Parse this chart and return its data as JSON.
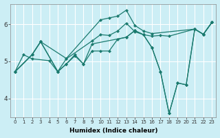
{
  "xlabel": "Humidex (Indice chaleur)",
  "background_color": "#cceef5",
  "grid_color": "#ffffff",
  "line_color": "#1a7a6e",
  "xlim": [
    -0.5,
    23.5
  ],
  "ylim": [
    3.5,
    6.55
  ],
  "yticks": [
    4,
    5,
    6
  ],
  "xticks": [
    0,
    1,
    2,
    3,
    4,
    5,
    6,
    7,
    8,
    9,
    10,
    11,
    12,
    13,
    14,
    15,
    16,
    17,
    18,
    19,
    20,
    21,
    22,
    23
  ],
  "series": [
    {
      "x": [
        0,
        2,
        3,
        6,
        10,
        11,
        12,
        13,
        14,
        15,
        16,
        21,
        22,
        23
      ],
      "y": [
        4.72,
        5.18,
        5.53,
        5.08,
        6.12,
        6.17,
        6.22,
        6.38,
        5.97,
        5.82,
        5.75,
        5.87,
        5.73,
        6.05
      ]
    },
    {
      "x": [
        0,
        2,
        3,
        5,
        6,
        9,
        10,
        11,
        12,
        13,
        14,
        15,
        16,
        17,
        18,
        21,
        22,
        23
      ],
      "y": [
        4.72,
        5.18,
        5.53,
        4.73,
        5.07,
        5.55,
        5.72,
        5.7,
        5.82,
        6.03,
        5.8,
        5.72,
        5.68,
        5.7,
        5.68,
        5.87,
        5.73,
        6.05
      ]
    },
    {
      "x": [
        0,
        2,
        3,
        5,
        6,
        7,
        8,
        9,
        13,
        14,
        15,
        16,
        17,
        18,
        19,
        20,
        21,
        22,
        23
      ],
      "y": [
        4.72,
        5.18,
        5.53,
        4.73,
        4.93,
        5.18,
        4.93,
        5.47,
        5.65,
        5.83,
        5.72,
        5.37,
        4.72,
        3.6,
        4.42,
        4.37,
        5.87,
        5.73,
        6.05
      ]
    },
    {
      "x": [
        0,
        1,
        2,
        4,
        5,
        6,
        7,
        8,
        9,
        10,
        11,
        12,
        13,
        14,
        15,
        16,
        17,
        18,
        19,
        20,
        21,
        22,
        23
      ],
      "y": [
        4.72,
        5.18,
        5.07,
        5.02,
        4.72,
        4.93,
        5.15,
        4.93,
        5.28,
        5.28,
        5.28,
        5.6,
        5.65,
        5.83,
        5.72,
        5.37,
        4.72,
        3.6,
        4.42,
        4.37,
        5.87,
        5.73,
        6.05
      ]
    }
  ]
}
